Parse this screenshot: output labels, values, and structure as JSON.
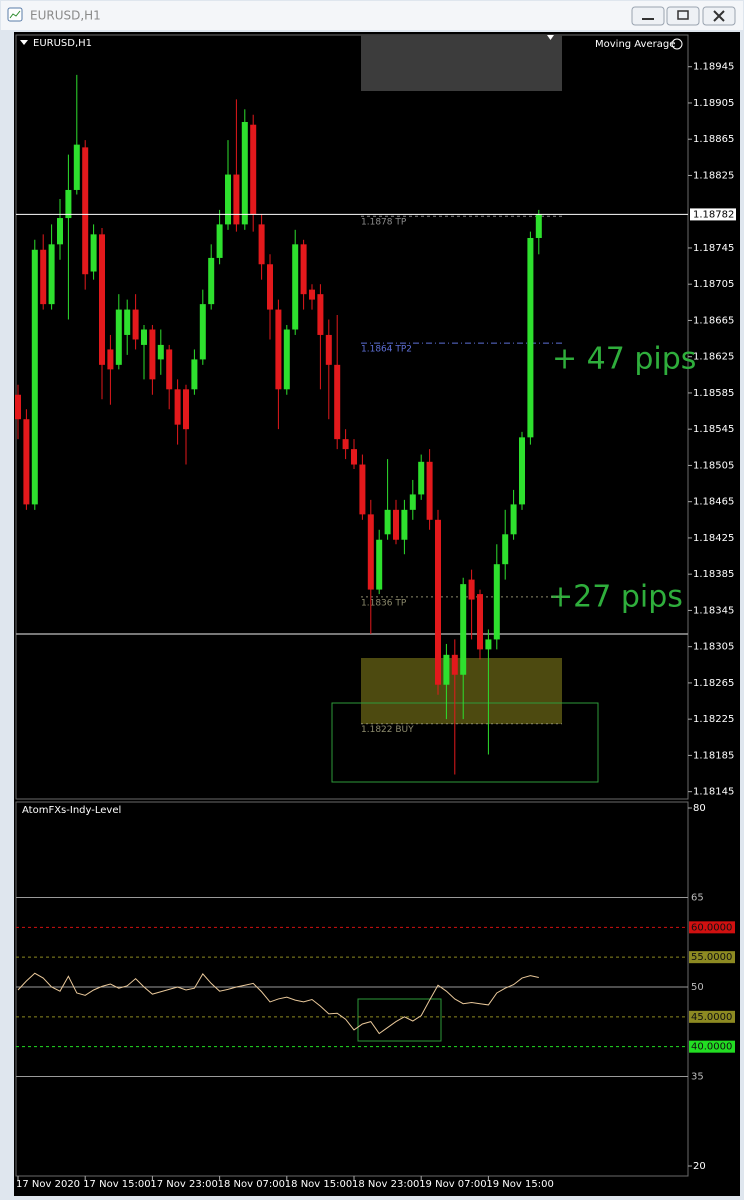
{
  "window": {
    "title": "EURUSD,H1"
  },
  "chart_data": [
    {
      "type": "candlestick",
      "title": "EURUSD,H1",
      "indicator_label": "Moving Average",
      "categories": [
        "17 Nov 2020",
        null,
        null,
        null,
        null,
        null,
        null,
        null,
        "17 Nov 15:00",
        null,
        null,
        null,
        null,
        null,
        null,
        null,
        "17 Nov 23:00",
        null,
        null,
        null,
        null,
        null,
        null,
        null,
        "18 Nov 07:00",
        null,
        null,
        null,
        null,
        null,
        null,
        null,
        "18 Nov 15:00",
        null,
        null,
        null,
        null,
        null,
        null,
        null,
        "18 Nov 23:00",
        null,
        null,
        null,
        null,
        null,
        null,
        null,
        "19 Nov 07:00",
        null,
        null,
        null,
        null,
        null,
        null,
        null,
        "19 Nov 15:00",
        null,
        null,
        null,
        null,
        null,
        null
      ],
      "open": [
        1.18583,
        1.18556,
        1.18462,
        1.18743,
        1.18683,
        1.18749,
        1.18778,
        1.18809,
        1.18856,
        1.18719,
        1.1876,
        1.18633,
        1.18616,
        1.18649,
        1.18677,
        1.18638,
        1.18655,
        1.18622,
        1.18633,
        1.18589,
        1.18589,
        1.18589,
        1.18622,
        1.18683,
        1.18734,
        1.18771,
        1.18826,
        1.18771,
        1.18881,
        1.18771,
        1.18727,
        1.18677,
        1.18589,
        1.18655,
        1.18749,
        1.18699,
        1.18694,
        1.18649,
        1.18616,
        1.18534,
        1.18523,
        1.18506,
        1.18451,
        1.18368,
        1.18429,
        1.18456,
        1.18423,
        1.18456,
        1.18473,
        1.18509,
        1.18445,
        1.18263,
        1.18296,
        1.18274,
        1.18379,
        1.18363,
        1.18302,
        1.18313,
        1.18396,
        1.18429,
        1.18462,
        1.18536,
        1.18756
      ],
      "high": [
        1.18594,
        1.18567,
        1.18754,
        1.1876,
        1.18771,
        1.18799,
        1.18848,
        1.18936,
        1.18864,
        1.18771,
        1.18767,
        1.18649,
        1.18694,
        1.18688,
        1.18694,
        1.1866,
        1.1866,
        1.18655,
        1.18638,
        1.186,
        1.18594,
        1.18633,
        1.18699,
        1.18749,
        1.18787,
        1.18864,
        1.18909,
        1.18898,
        1.18892,
        1.18782,
        1.18738,
        1.18688,
        1.1866,
        1.18765,
        1.18754,
        1.18705,
        1.18705,
        1.18666,
        1.18671,
        1.18545,
        1.18534,
        1.18517,
        1.18467,
        1.18434,
        1.18512,
        1.18467,
        1.18467,
        1.18489,
        1.18517,
        1.18523,
        1.18456,
        1.18308,
        1.18313,
        1.18381,
        1.1839,
        1.18368,
        1.18324,
        1.18418,
        1.18456,
        1.18478,
        1.18542,
        1.18763,
        1.18787
      ],
      "low": [
        1.18534,
        1.18456,
        1.18456,
        1.18677,
        1.18677,
        1.18732,
        1.18666,
        1.18804,
        1.18699,
        1.1871,
        1.18578,
        1.18572,
        1.18611,
        1.18627,
        1.18633,
        1.186,
        1.18583,
        1.18605,
        1.18567,
        1.18528,
        1.18506,
        1.18583,
        1.18616,
        1.18677,
        1.18727,
        1.18765,
        1.18763,
        1.18765,
        1.18763,
        1.1871,
        1.18644,
        1.18545,
        1.18583,
        1.18649,
        1.18677,
        1.18677,
        1.18589,
        1.18556,
        1.18523,
        1.18512,
        1.18501,
        1.18445,
        1.18319,
        1.18363,
        1.18423,
        1.18418,
        1.18407,
        1.18445,
        1.18467,
        1.18434,
        1.18252,
        1.18225,
        1.18164,
        1.18225,
        1.18313,
        1.18291,
        1.18186,
        1.18302,
        1.18379,
        1.18423,
        1.18456,
        1.18528,
        1.18738
      ],
      "close": [
        1.18556,
        1.18462,
        1.18743,
        1.18683,
        1.18749,
        1.18778,
        1.18809,
        1.18859,
        1.18716,
        1.1876,
        1.18616,
        1.18611,
        1.18677,
        1.18677,
        1.18644,
        1.18655,
        1.186,
        1.18638,
        1.18589,
        1.1855,
        1.18545,
        1.18622,
        1.18683,
        1.18734,
        1.18771,
        1.18826,
        1.18771,
        1.18884,
        1.18782,
        1.18727,
        1.18677,
        1.18589,
        1.18655,
        1.18749,
        1.18694,
        1.18688,
        1.18649,
        1.18616,
        1.18534,
        1.18523,
        1.18506,
        1.18451,
        1.18368,
        1.18423,
        1.18456,
        1.18423,
        1.18456,
        1.18473,
        1.18509,
        1.18445,
        1.18263,
        1.18296,
        1.18274,
        1.18374,
        1.18357,
        1.18302,
        1.18313,
        1.18396,
        1.18429,
        1.18462,
        1.18536,
        1.18756,
        1.18782
      ],
      "up_color": "#2ee02e",
      "down_color": "#e3191c",
      "ylim": [
        1.18138,
        1.1898
      ],
      "yticks": [
        1.18945,
        1.18905,
        1.18865,
        1.18825,
        1.18745,
        1.18705,
        1.18665,
        1.18625,
        1.18585,
        1.18545,
        1.18505,
        1.18465,
        1.18425,
        1.18385,
        1.18345,
        1.18305,
        1.18265,
        1.18225,
        1.18185,
        1.18145
      ],
      "current_price": 1.18782,
      "horizontal_line": 1.18319,
      "levels": [
        {
          "label": "1.1878 TP",
          "value": 1.1878,
          "color": "#8c8c8c",
          "dash": "3 3"
        },
        {
          "label": "1.1864 TP2",
          "value": 1.1864,
          "color": "#5e6fd6",
          "dash": "6 3 1 3"
        },
        {
          "label": "1.1836 TP",
          "value": 1.1836,
          "color": "#8c8a6c",
          "dash": "2 3"
        },
        {
          "label": "1.1822 BUY",
          "value": 1.1822,
          "color": "#8c8a6c",
          "dash": "2 3"
        }
      ],
      "annotations": [
        "+ 47 pips",
        "+27 pips"
      ]
    },
    {
      "type": "line",
      "title": "AtomFXs-Indy-Level",
      "values": [
        49.5,
        51,
        52.3,
        51.5,
        50,
        49.3,
        51.8,
        49,
        48.6,
        49.5,
        50.1,
        50.5,
        49.8,
        50.2,
        51.4,
        50,
        48.8,
        49.2,
        49.6,
        50,
        49.5,
        49.8,
        52.2,
        50.6,
        49.3,
        49.6,
        50,
        50.3,
        50.6,
        49.2,
        47.5,
        48,
        48.3,
        47.8,
        47.5,
        47.9,
        46.8,
        45.5,
        45.6,
        44.6,
        42.8,
        43.8,
        44.2,
        42.2,
        43.2,
        44.2,
        45,
        44.3,
        45.2,
        47.8,
        50.3,
        49.3,
        48,
        47.2,
        47.4,
        47.2,
        47,
        49,
        49.8,
        50.4,
        51.5,
        51.9,
        51.6
      ],
      "color": "#e9c89a",
      "ylim": [
        20,
        80
      ],
      "yticks": [
        80,
        20
      ],
      "levels": [
        {
          "value": 65,
          "color": "#9a9a9a",
          "dashed": false
        },
        {
          "value": 60,
          "label": "60.0000",
          "color": "#d01010",
          "dashed": true
        },
        {
          "value": 55,
          "label": "55.0000",
          "color": "#8d8a22",
          "dashed": true
        },
        {
          "value": 50,
          "color": "#9a9a9a",
          "dashed": false
        },
        {
          "value": 45,
          "label": "45.0000",
          "color": "#8d8a22",
          "dashed": true
        },
        {
          "value": 40,
          "label": "40.0000",
          "color": "#22dd22",
          "dashed": true
        },
        {
          "value": 35,
          "color": "#9a9a9a",
          "dashed": false
        }
      ]
    }
  ]
}
